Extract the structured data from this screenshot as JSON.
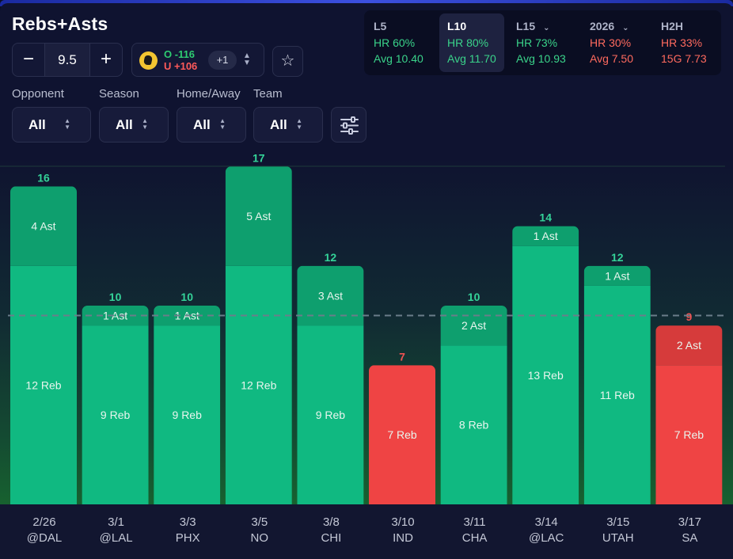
{
  "title": "Rebs+Asts",
  "line": {
    "value": "9.5",
    "minus": "−",
    "plus": "+"
  },
  "odds": {
    "over": "O -116",
    "under": "U +106",
    "more": "+1"
  },
  "star_icon": "☆",
  "stats": [
    {
      "label": "L5",
      "hr": "HR 60%",
      "avg": "Avg 10.40",
      "tone": "g",
      "dropdown": false,
      "active": false
    },
    {
      "label": "L10",
      "hr": "HR 80%",
      "avg": "Avg 11.70",
      "tone": "g",
      "dropdown": false,
      "active": true
    },
    {
      "label": "L15",
      "hr": "HR 73%",
      "avg": "Avg 10.93",
      "tone": "g",
      "dropdown": true,
      "active": false
    },
    {
      "label": "2026",
      "hr": "HR 30%",
      "avg": "Avg 7.50",
      "tone": "red",
      "dropdown": true,
      "active": false
    },
    {
      "label": "H2H",
      "hr": "HR 33%",
      "avg": "15G 7.73",
      "tone": "red",
      "dropdown": false,
      "active": false
    }
  ],
  "filters": [
    {
      "label": "Opponent",
      "value": "All"
    },
    {
      "label": "Season",
      "value": "All"
    },
    {
      "label": "Home/Away",
      "value": "All"
    },
    {
      "label": "Team",
      "value": "All"
    }
  ],
  "colors": {
    "hit": "#10b981",
    "hit_top": "#0e9f6e",
    "miss": "#ef4444",
    "miss_top": "#d63b3b",
    "hit_text": "#34d399",
    "miss_text": "#f05252"
  },
  "chart_data": {
    "type": "bar",
    "stacked": true,
    "title": "Rebs+Asts",
    "line": 9.5,
    "ylim": [
      0,
      17
    ],
    "categories": [
      {
        "date": "2/26",
        "opp": "@DAL"
      },
      {
        "date": "3/1",
        "opp": "@LAL"
      },
      {
        "date": "3/3",
        "opp": "PHX"
      },
      {
        "date": "3/5",
        "opp": "NO"
      },
      {
        "date": "3/8",
        "opp": "CHI"
      },
      {
        "date": "3/10",
        "opp": "IND"
      },
      {
        "date": "3/11",
        "opp": "CHA"
      },
      {
        "date": "3/14",
        "opp": "@LAC"
      },
      {
        "date": "3/15",
        "opp": "UTAH"
      },
      {
        "date": "3/17",
        "opp": "SA"
      }
    ],
    "series": [
      {
        "name": "Reb",
        "values": [
          12,
          9,
          9,
          12,
          9,
          7,
          8,
          13,
          11,
          7
        ]
      },
      {
        "name": "Ast",
        "values": [
          4,
          1,
          1,
          5,
          3,
          0,
          2,
          1,
          1,
          2
        ]
      }
    ],
    "totals": [
      16,
      10,
      10,
      17,
      12,
      7,
      10,
      14,
      12,
      9
    ]
  }
}
